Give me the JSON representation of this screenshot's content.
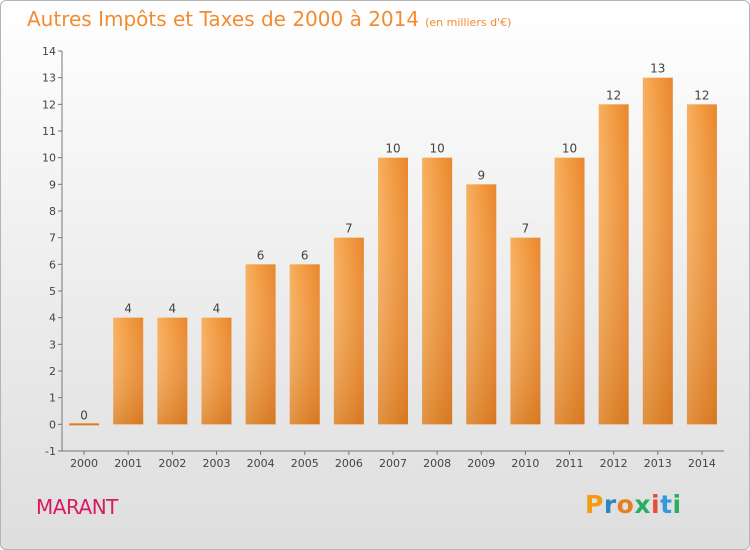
{
  "header": {
    "title": "Autres Impôts et Taxes de 2000 à 2014",
    "subtitle": "(en milliers d'€)"
  },
  "footer": {
    "commune": "MARANT",
    "logo_text": "Proxiti",
    "logo_colors": [
      "#f39c12",
      "#2e86c1",
      "#e67e22",
      "#27ae60",
      "#e74c3c",
      "#3498db",
      "#27ae60"
    ]
  },
  "chart_data": {
    "type": "bar",
    "categories": [
      "2000",
      "2001",
      "2002",
      "2003",
      "2004",
      "2005",
      "2006",
      "2007",
      "2008",
      "2009",
      "2010",
      "2011",
      "2012",
      "2013",
      "2014"
    ],
    "values": [
      0,
      4,
      4,
      4,
      6,
      6,
      7,
      10,
      10,
      9,
      7,
      10,
      12,
      13,
      12
    ],
    "yticks": [
      -1,
      0,
      1,
      2,
      3,
      4,
      5,
      6,
      7,
      8,
      9,
      10,
      11,
      12,
      13,
      14
    ],
    "ylim": [
      -1,
      14
    ],
    "grid": false,
    "bar_color": "#f39a45",
    "zero_bar_color": "#e07a1e"
  }
}
